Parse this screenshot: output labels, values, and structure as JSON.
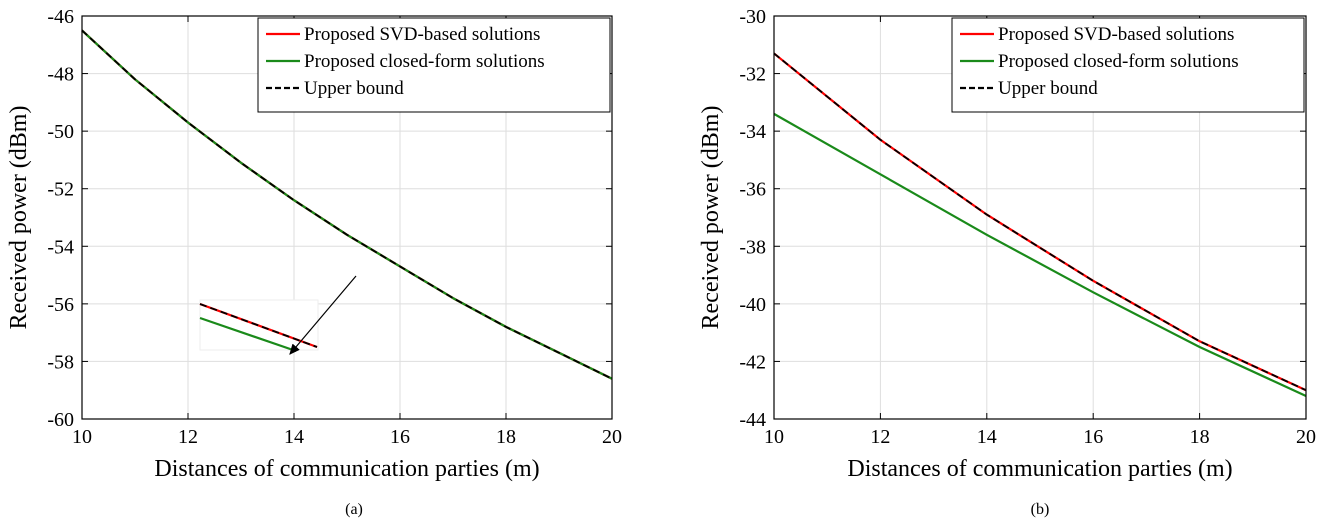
{
  "chart_data": [
    {
      "type": "line",
      "caption": "(a)",
      "xlabel": "Distances of communication parties (m)",
      "ylabel": "Received power (dBm)",
      "xlim": [
        10,
        20
      ],
      "ylim": [
        -60,
        -46
      ],
      "xticks": [
        "10",
        "12",
        "14",
        "16",
        "18",
        "20"
      ],
      "yticks": [
        "-46",
        "-48",
        "-50",
        "-52",
        "-54",
        "-56",
        "-58",
        "-60"
      ],
      "grid": true,
      "legend_position": "top-right",
      "series": [
        {
          "name": "Proposed SVD-based solutions",
          "color": "#ff0000",
          "style": "solid",
          "x": [
            10,
            11,
            12,
            13,
            14,
            15,
            16,
            17,
            18,
            19,
            20
          ],
          "y": [
            -46.5,
            -48.2,
            -49.7,
            -51.1,
            -52.4,
            -53.6,
            -54.7,
            -55.8,
            -56.8,
            -57.7,
            -58.6
          ]
        },
        {
          "name": "Proposed closed-form solutions",
          "color": "#1a8a1a",
          "style": "solid",
          "x": [
            10,
            11,
            12,
            13,
            14,
            15,
            16,
            17,
            18,
            19,
            20
          ],
          "y": [
            -46.5,
            -48.2,
            -49.7,
            -51.1,
            -52.4,
            -53.6,
            -54.7,
            -55.8,
            -56.8,
            -57.7,
            -58.6
          ]
        },
        {
          "name": "Upper bound",
          "color": "#000000",
          "style": "dashed",
          "x": [
            10,
            11,
            12,
            13,
            14,
            15,
            16,
            17,
            18,
            19,
            20
          ],
          "y": [
            -46.5,
            -48.2,
            -49.7,
            -51.1,
            -52.4,
            -53.6,
            -54.7,
            -55.8,
            -56.8,
            -57.7,
            -58.6
          ]
        }
      ],
      "inset": true
    },
    {
      "type": "line",
      "caption": "(b)",
      "xlabel": "Distances of communication parties (m)",
      "ylabel": "Received power (dBm)",
      "xlim": [
        10,
        20
      ],
      "ylim": [
        -44,
        -30
      ],
      "xticks": [
        "10",
        "12",
        "14",
        "16",
        "18",
        "20"
      ],
      "yticks": [
        "-30",
        "-32",
        "-34",
        "-36",
        "-38",
        "-40",
        "-42",
        "-44"
      ],
      "grid": true,
      "legend_position": "top-right",
      "series": [
        {
          "name": "Proposed SVD-based solutions",
          "color": "#ff0000",
          "style": "solid",
          "x": [
            10,
            12,
            14,
            16,
            18,
            20
          ],
          "y": [
            -31.3,
            -34.3,
            -36.9,
            -39.2,
            -41.3,
            -43.0
          ]
        },
        {
          "name": "Proposed closed-form solutions",
          "color": "#1a8a1a",
          "style": "solid",
          "x": [
            10,
            12,
            14,
            16,
            18,
            20
          ],
          "y": [
            -33.4,
            -35.5,
            -37.6,
            -39.6,
            -41.5,
            -43.2
          ]
        },
        {
          "name": "Upper bound",
          "color": "#000000",
          "style": "dashed",
          "x": [
            10,
            12,
            14,
            16,
            18,
            20
          ],
          "y": [
            -31.3,
            -34.3,
            -36.9,
            -39.2,
            -41.3,
            -43.0
          ]
        }
      ]
    }
  ]
}
